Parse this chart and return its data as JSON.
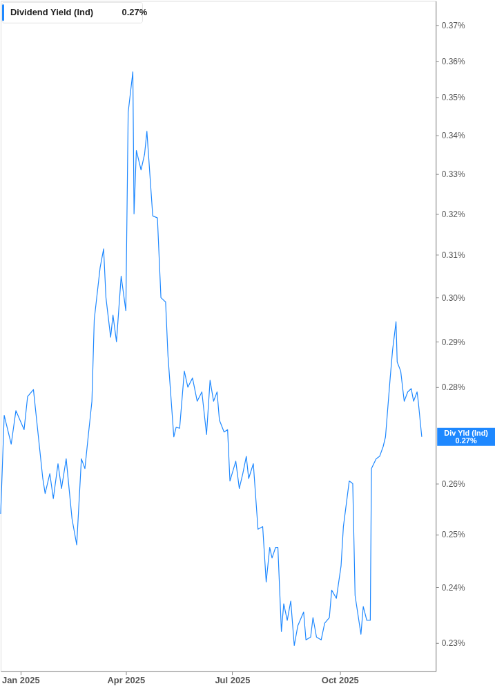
{
  "chart_data": {
    "type": "line",
    "log": true,
    "grid": false,
    "legend": "top left",
    "marker": "none",
    "line_style": "solid",
    "xlim": [
      "2024-12-15",
      "2025-12-22"
    ],
    "xticks": [
      {
        "value": "2025-01-01",
        "label": "Jan 2025"
      },
      {
        "value": "2025-04-01",
        "label": "Apr 2025"
      },
      {
        "value": "2025-07-01",
        "label": "Jul 2025"
      },
      {
        "value": "2025-10-01",
        "label": "Oct 2025"
      }
    ],
    "ylim": [
      0.225,
      0.377
    ],
    "yticks": [
      {
        "value": 0.23,
        "label": "0.23%"
      },
      {
        "value": 0.24,
        "label": "0.24%"
      },
      {
        "value": 0.25,
        "label": "0.25%"
      },
      {
        "value": 0.26,
        "label": "0.26%"
      },
      {
        "value": 0.28,
        "label": "0.28%"
      },
      {
        "value": 0.29,
        "label": "0.29%"
      },
      {
        "value": 0.3,
        "label": "0.30%"
      },
      {
        "value": 0.31,
        "label": "0.31%"
      },
      {
        "value": 0.32,
        "label": "0.32%"
      },
      {
        "value": 0.33,
        "label": "0.33%"
      },
      {
        "value": 0.34,
        "label": "0.34%"
      },
      {
        "value": 0.35,
        "label": "0.35%"
      },
      {
        "value": 0.36,
        "label": "0.36%"
      },
      {
        "value": 0.37,
        "label": "0.37%"
      }
    ],
    "x": [
      "2024-12-15",
      "2024-12-18",
      "2024-12-24",
      "2024-12-28",
      "2025-01-04",
      "2025-01-07",
      "2025-01-12",
      "2025-01-20",
      "2025-01-22",
      "2025-01-26",
      "2025-01-29",
      "2025-02-02",
      "2025-02-05",
      "2025-02-09",
      "2025-02-14",
      "2025-02-18",
      "2025-02-22",
      "2025-02-25",
      "2025-02-28",
      "2025-03-03",
      "2025-03-05",
      "2025-03-10",
      "2025-03-13",
      "2025-03-15",
      "2025-03-19",
      "2025-03-21",
      "2025-03-24",
      "2025-03-28",
      "2025-04-01",
      "2025-04-03",
      "2025-04-07",
      "2025-04-08",
      "2025-04-10",
      "2025-04-14",
      "2025-04-17",
      "2025-04-19",
      "2025-04-24",
      "2025-04-28",
      "2025-05-01",
      "2025-05-05",
      "2025-05-07",
      "2025-05-12",
      "2025-05-14",
      "2025-05-17",
      "2025-05-21",
      "2025-05-24",
      "2025-05-28",
      "2025-06-01",
      "2025-06-05",
      "2025-06-09",
      "2025-06-12",
      "2025-06-15",
      "2025-06-18",
      "2025-06-20",
      "2025-06-24",
      "2025-06-27",
      "2025-06-29",
      "2025-07-04",
      "2025-07-07",
      "2025-07-10",
      "2025-07-13",
      "2025-07-15",
      "2025-07-19",
      "2025-07-23",
      "2025-07-27",
      "2025-07-30",
      "2025-08-02",
      "2025-08-04",
      "2025-08-07",
      "2025-08-09",
      "2025-08-12",
      "2025-08-14",
      "2025-08-17",
      "2025-08-20",
      "2025-08-23",
      "2025-08-26",
      "2025-08-31",
      "2025-09-02",
      "2025-09-06",
      "2025-09-08",
      "2025-09-11",
      "2025-09-15",
      "2025-09-18",
      "2025-09-22",
      "2025-09-24",
      "2025-09-28",
      "2025-10-02",
      "2025-10-04",
      "2025-10-09",
      "2025-10-12",
      "2025-10-14",
      "2025-10-19",
      "2025-10-21",
      "2025-10-24",
      "2025-10-27",
      "2025-10-28",
      "2025-11-01",
      "2025-11-04",
      "2025-11-07",
      "2025-11-09",
      "2025-11-13",
      "2025-11-15",
      "2025-11-18",
      "2025-11-19",
      "2025-11-22",
      "2025-11-25",
      "2025-11-28",
      "2025-12-01",
      "2025-12-03",
      "2025-12-06",
      "2025-12-07",
      "2025-12-10"
    ],
    "series": [
      {
        "name": "Dividend Yield (Ind)",
        "color": "#1e88ff",
        "values": [
          0.254,
          0.274,
          0.268,
          0.275,
          0.271,
          0.278,
          0.2795,
          0.261,
          0.258,
          0.262,
          0.257,
          0.264,
          0.259,
          0.265,
          0.253,
          0.248,
          0.265,
          0.263,
          0.27,
          0.277,
          0.295,
          0.307,
          0.3115,
          0.3,
          0.291,
          0.296,
          0.29,
          0.305,
          0.297,
          0.346,
          0.357,
          0.32,
          0.336,
          0.331,
          0.335,
          0.341,
          0.3195,
          0.319,
          0.3,
          0.299,
          0.287,
          0.2695,
          0.2715,
          0.2713,
          0.2835,
          0.28,
          0.282,
          0.277,
          0.279,
          0.27,
          0.2815,
          0.277,
          0.279,
          0.273,
          0.2705,
          0.271,
          0.2605,
          0.2645,
          0.259,
          0.262,
          0.2655,
          0.261,
          0.264,
          0.251,
          0.2515,
          0.241,
          0.2475,
          0.2455,
          0.2475,
          0.2475,
          0.232,
          0.237,
          0.234,
          0.2375,
          0.2295,
          0.233,
          0.2355,
          0.2305,
          0.231,
          0.2345,
          0.231,
          0.2305,
          0.2335,
          0.2345,
          0.2395,
          0.238,
          0.244,
          0.2515,
          0.2605,
          0.26,
          0.2385,
          0.2315,
          0.2365,
          0.234,
          0.234,
          0.263,
          0.265,
          0.2655,
          0.2675,
          0.2695,
          0.282,
          0.288,
          0.2945,
          0.2855,
          0.2835,
          0.277,
          0.279,
          0.2797,
          0.277,
          0.279,
          0.277,
          0.2695
        ]
      }
    ],
    "annotations": [
      "0.27%",
      {
        "text": "Div Yld (Ind)\n0.27%",
        "x": "2025-12-10",
        "y": 0.2695
      }
    ]
  }
}
